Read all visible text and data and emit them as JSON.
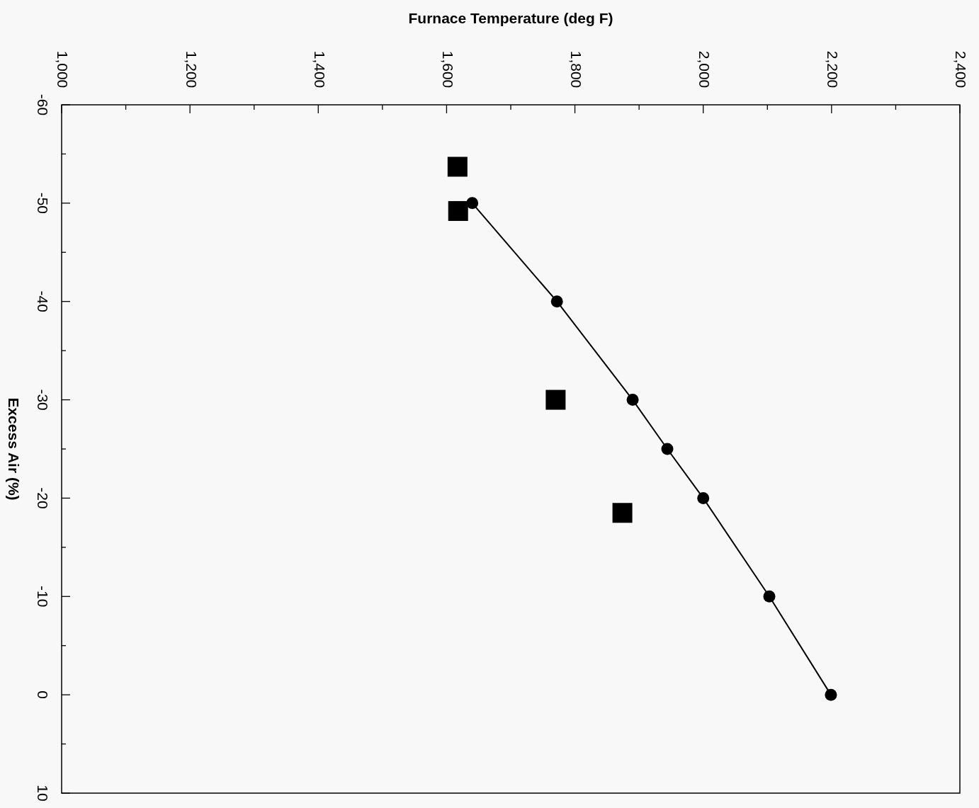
{
  "chart_data": {
    "type": "line",
    "xlabel": "Furnace Temperature (deg F)",
    "ylabel": "Excess Air (%)",
    "xlim": [
      1000,
      2400
    ],
    "ylim": [
      10,
      -60
    ],
    "xticks": [
      {
        "value": 1000,
        "label": "1,000"
      },
      {
        "value": 1100,
        "label": null
      },
      {
        "value": 1200,
        "label": "1,200"
      },
      {
        "value": 1300,
        "label": null
      },
      {
        "value": 1400,
        "label": "1,400"
      },
      {
        "value": 1500,
        "label": null
      },
      {
        "value": 1600,
        "label": "1,600"
      },
      {
        "value": 1700,
        "label": null
      },
      {
        "value": 1800,
        "label": "1,800"
      },
      {
        "value": 1900,
        "label": null
      },
      {
        "value": 2000,
        "label": "2,000"
      },
      {
        "value": 2100,
        "label": null
      },
      {
        "value": 2200,
        "label": "2,200"
      },
      {
        "value": 2300,
        "label": null
      },
      {
        "value": 2400,
        "label": "2,400"
      }
    ],
    "yticks": [
      -60,
      {
        "value": -55,
        "label": null
      },
      -50,
      {
        "value": -45,
        "label": null
      },
      -40,
      {
        "value": -35,
        "label": null
      },
      -30,
      {
        "value": -25,
        "label": null
      },
      -20,
      {
        "value": -15,
        "label": null
      },
      -10,
      {
        "value": -5,
        "label": null
      },
      0,
      {
        "value": 5,
        "label": null
      },
      10
    ],
    "grid": false,
    "series": [
      {
        "marker": "circle",
        "line_style": "solid",
        "color": "#000000",
        "x": [
          1640,
          1772,
          1890,
          1944,
          2000,
          2103,
          2199
        ],
        "values": [
          -50,
          -40,
          -30,
          -25,
          -20,
          -10,
          0
        ]
      },
      {
        "type": "scatter",
        "marker": "square",
        "color": "#000000",
        "x": [
          1617,
          1618,
          1770,
          1874
        ],
        "values": [
          -53.7,
          -49.2,
          -30,
          -18.5
        ]
      }
    ]
  }
}
